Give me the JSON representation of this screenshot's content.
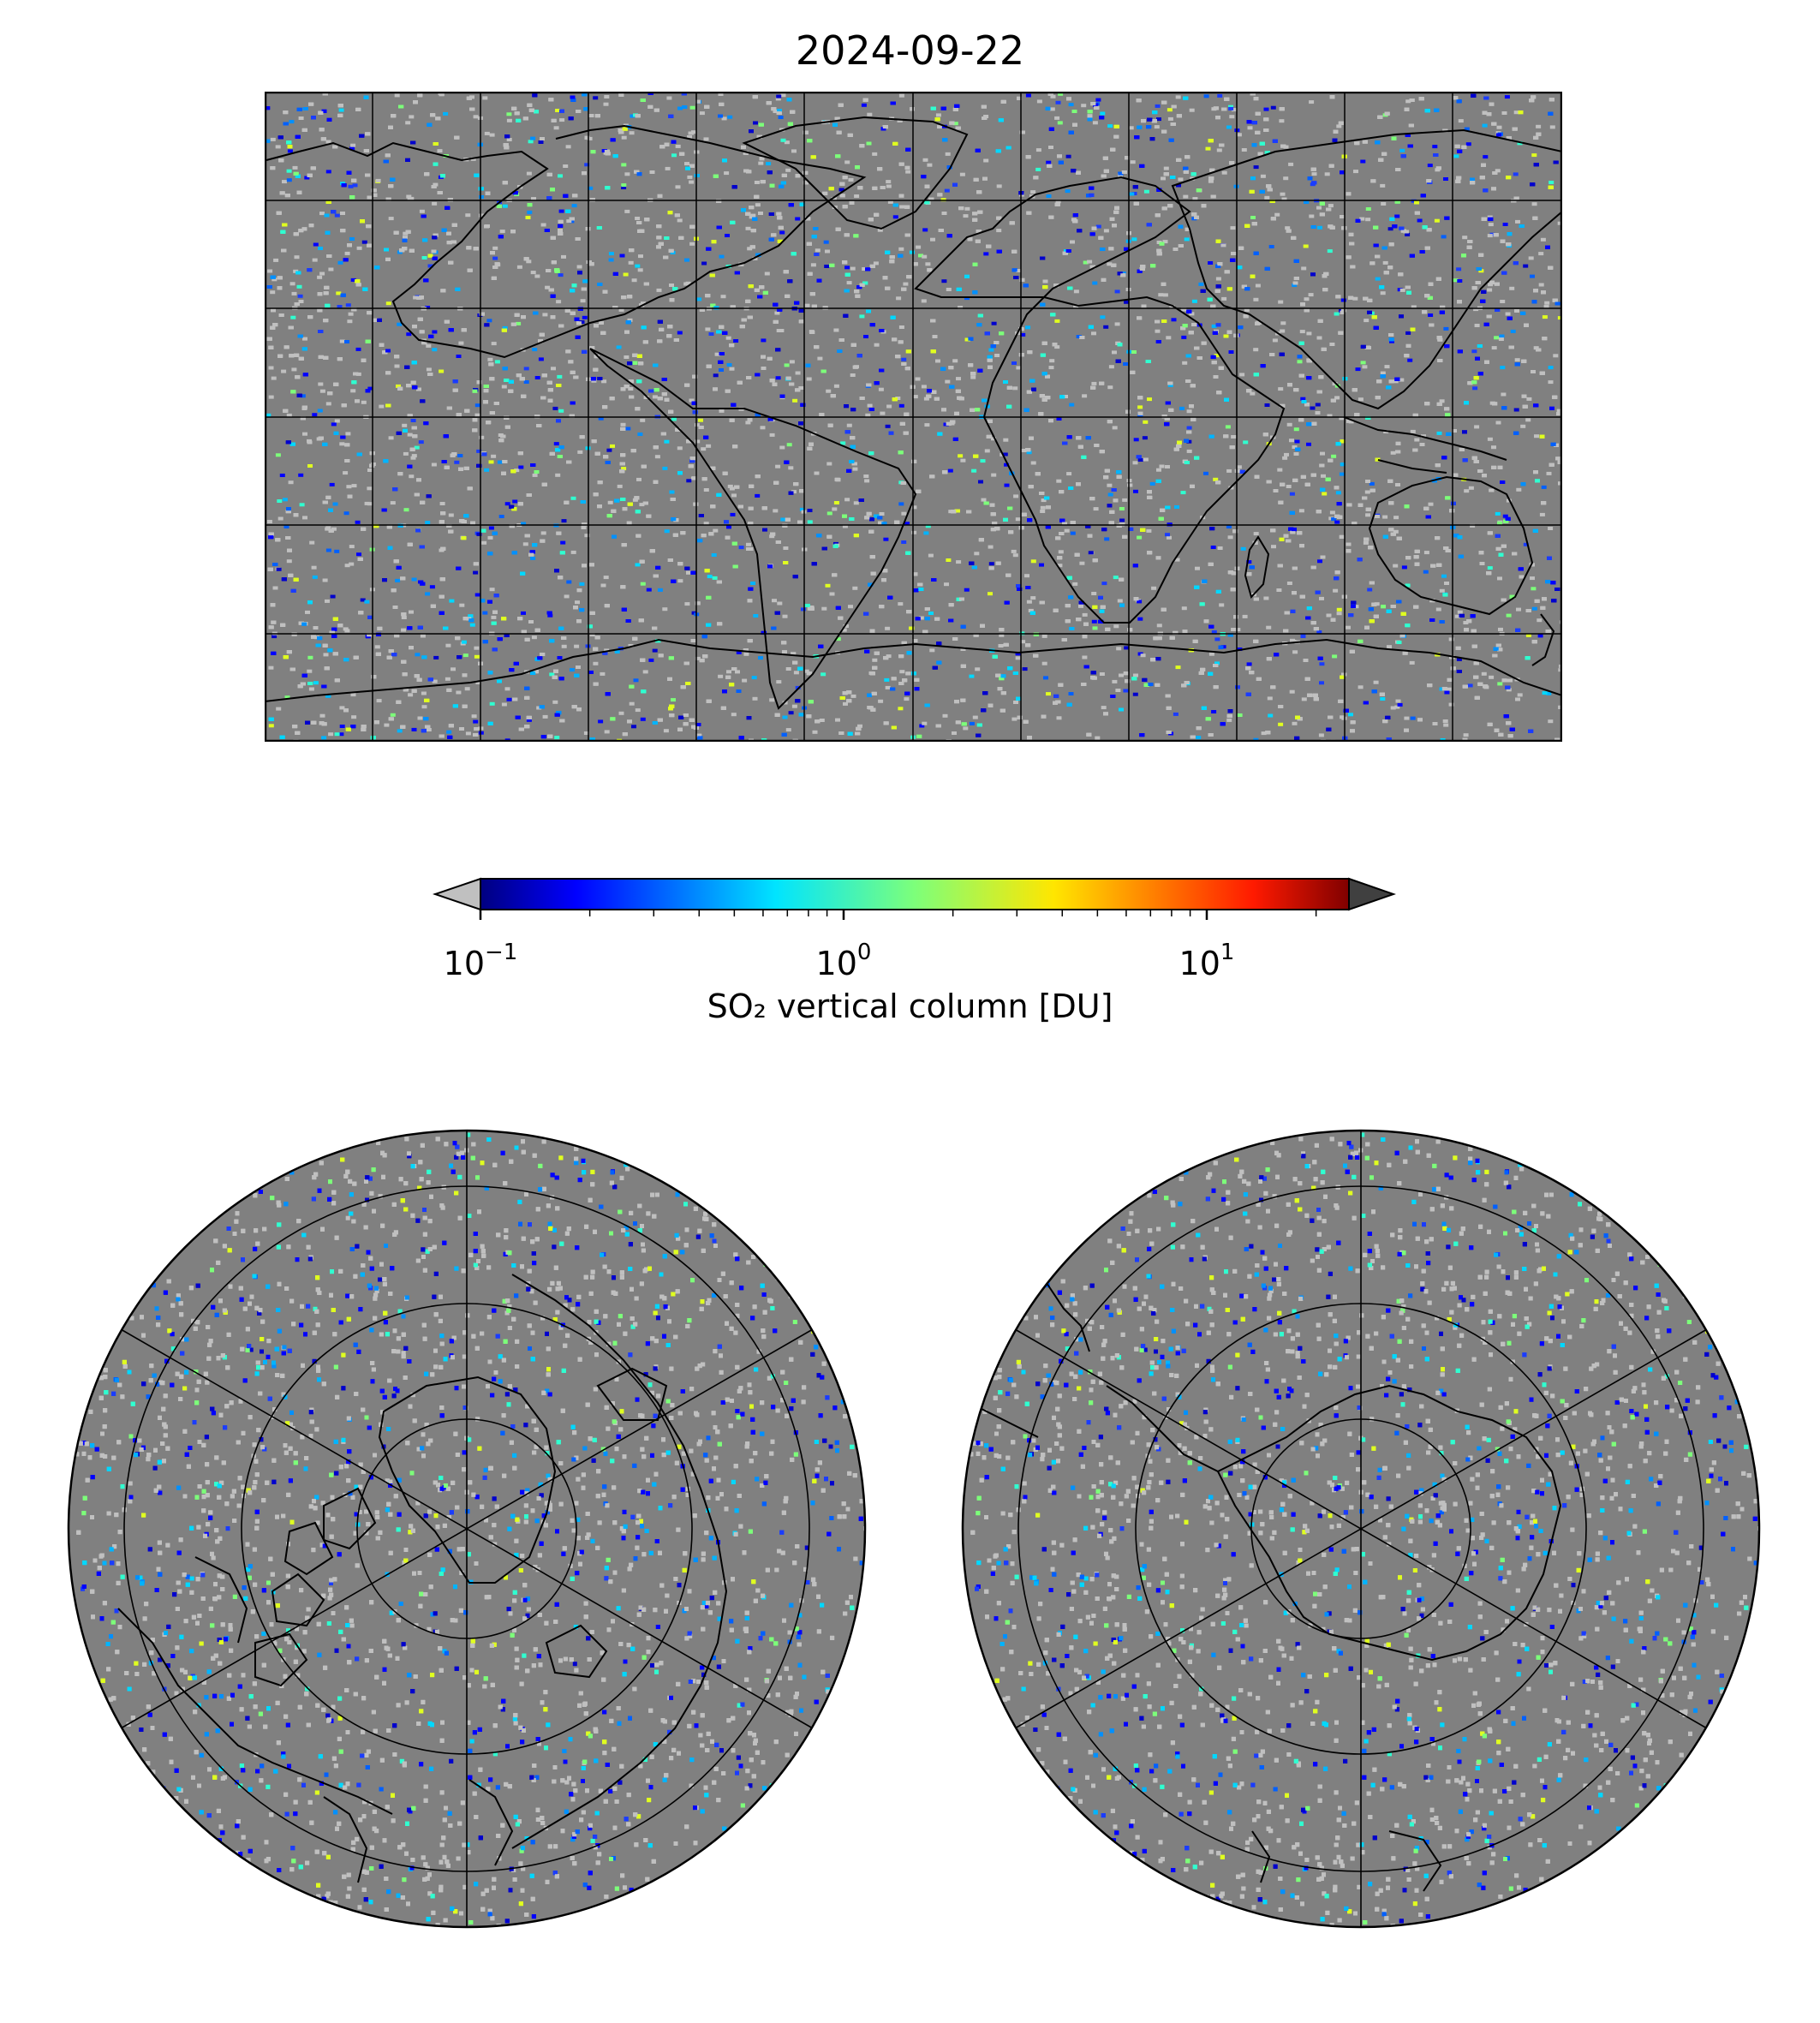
{
  "figure": {
    "title": "2024-09-22"
  },
  "colorbar": {
    "label": "SO₂ vertical column [DU]",
    "scale": "log",
    "range": [
      0.1,
      25
    ],
    "extend": "both",
    "under_color": "#c0c0c0",
    "over_color": "#404040",
    "colormap": "jet",
    "colors": [
      "#000080",
      "#0000ff",
      "#0080ff",
      "#00ffff",
      "#80ff80",
      "#ffff00",
      "#ff8000",
      "#ff0000",
      "#800000"
    ],
    "ticks": [
      {
        "value": 0.1,
        "base": "10",
        "exp": "−1"
      },
      {
        "value": 1,
        "base": "10",
        "exp": "0"
      },
      {
        "value": 10,
        "base": "10",
        "exp": "1"
      }
    ]
  },
  "maps": {
    "background_color": "#808080",
    "low_value_color": "#c0c0c0",
    "coastline_color": "#000000",
    "global": {
      "projection": "equirectangular",
      "gridlines": true
    },
    "north_polar": {
      "projection": "polar stereographic (north)",
      "gridlines": true
    },
    "south_polar": {
      "projection": "polar stereographic (south)",
      "gridlines": true
    }
  }
}
